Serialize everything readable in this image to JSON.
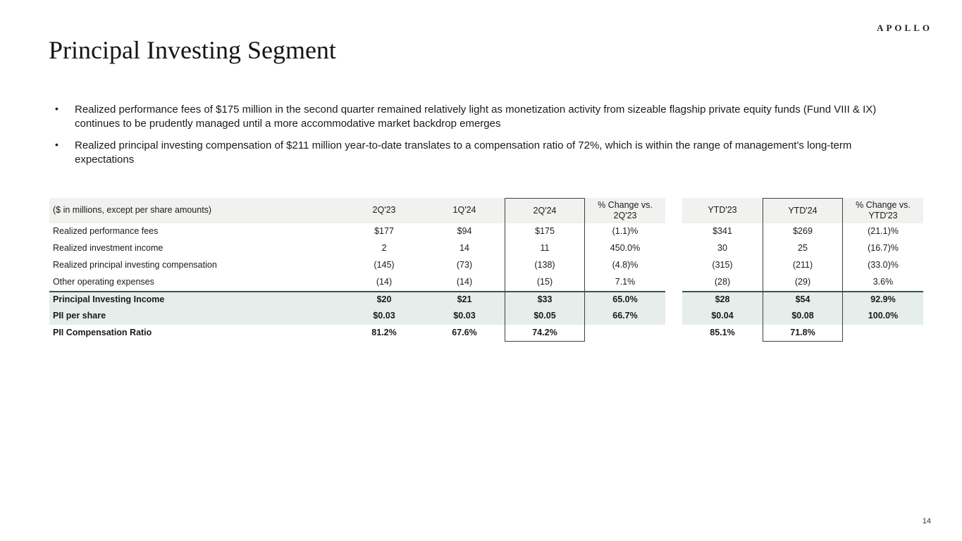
{
  "logo": "APOLLO",
  "title": "Principal Investing Segment",
  "bullets": [
    "Realized performance fees of $175 million in the second quarter remained relatively light as monetization activity from sizeable flagship private equity funds (Fund VIII & IX) continues to be prudently managed until a more accommodative market backdrop emerges",
    "Realized principal investing compensation of $211 million year-to-date translates to a compensation ratio of 72%, which is within the range of management's long-term expectations"
  ],
  "table": {
    "caption": "($ in millions, except per share amounts)",
    "columns": [
      "2Q'23",
      "1Q'24",
      "2Q'24",
      "% Change vs. 2Q'23",
      "YTD'23",
      "YTD'24",
      "% Change vs. YTD'23"
    ],
    "rows": [
      {
        "label": "Realized performance fees",
        "values": [
          "$177",
          "$94",
          "$175",
          "(1.1)%",
          "$341",
          "$269",
          "(21.1)%"
        ]
      },
      {
        "label": "Realized investment income",
        "values": [
          "2",
          "14",
          "11",
          "450.0%",
          "30",
          "25",
          "(16.7)%"
        ]
      },
      {
        "label": "Realized principal investing compensation",
        "values": [
          "(145)",
          "(73)",
          "(138)",
          "(4.8)%",
          "(315)",
          "(211)",
          "(33.0)%"
        ]
      },
      {
        "label": "Other operating expenses",
        "values": [
          "(14)",
          "(14)",
          "(15)",
          "7.1%",
          "(28)",
          "(29)",
          "3.6%"
        ]
      },
      {
        "label": "Principal Investing Income",
        "values": [
          "$20",
          "$21",
          "$33",
          "65.0%",
          "$28",
          "$54",
          "92.9%"
        ]
      },
      {
        "label": "PII per share",
        "values": [
          "$0.03",
          "$0.03",
          "$0.05",
          "66.7%",
          "$0.04",
          "$0.08",
          "100.0%"
        ]
      },
      {
        "label": "PII Compensation Ratio",
        "values": [
          "81.2%",
          "67.6%",
          "74.2%",
          "",
          "85.1%",
          "71.8%",
          ""
        ]
      }
    ]
  },
  "page_number": "14",
  "colors": {
    "header_bg": "#f1f1ef",
    "highlight_bg": "#e5eeea",
    "rule": "#40544b",
    "box_border": "#3f3f3f"
  }
}
